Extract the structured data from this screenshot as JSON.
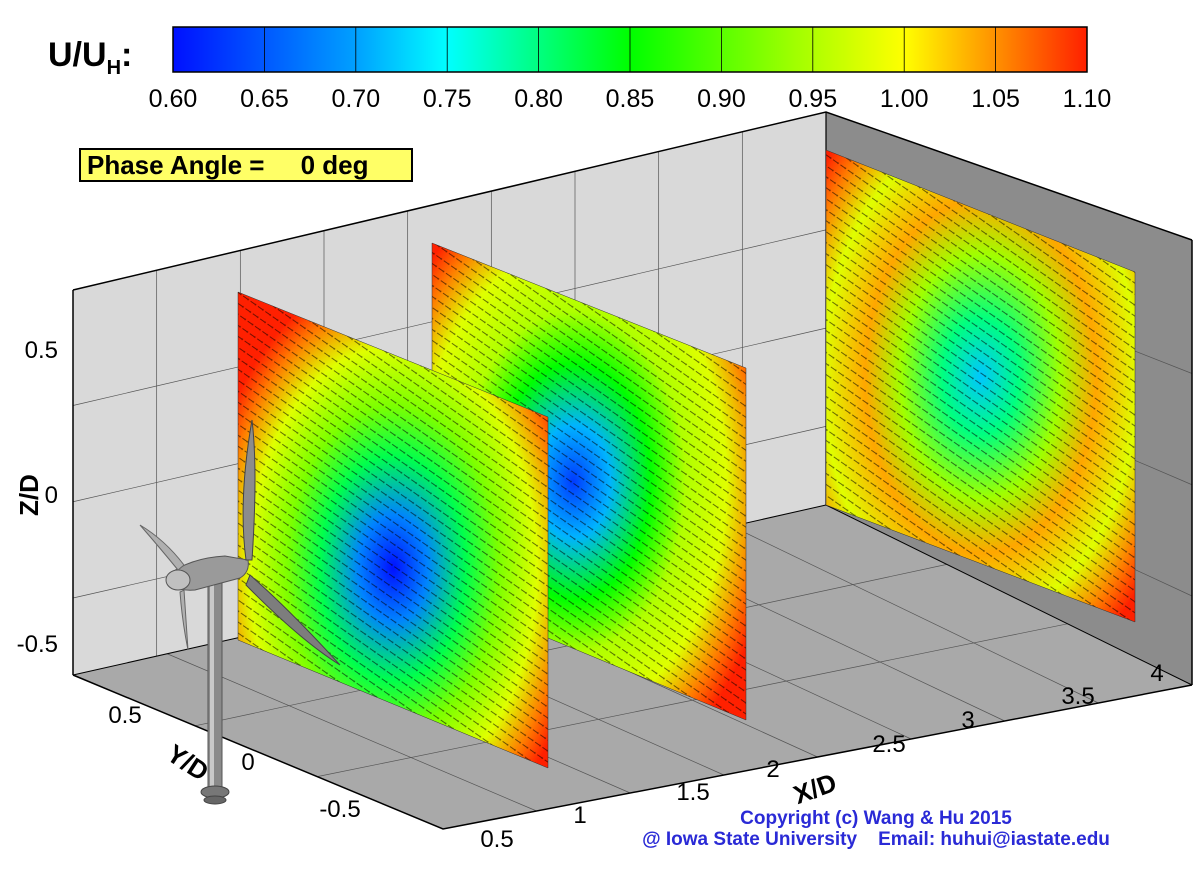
{
  "chart_data": {
    "type": "heatmap",
    "colorbar": {
      "label": "U/U",
      "label_sub": "H",
      "label_suffix": ":",
      "ticks": [
        "0.60",
        "0.65",
        "0.70",
        "0.75",
        "0.80",
        "0.85",
        "0.90",
        "0.95",
        "1.00",
        "1.05",
        "1.10"
      ],
      "range": [
        0.6,
        1.1
      ]
    },
    "phase_label": "Phase Angle =     0 deg",
    "axes": {
      "z": {
        "label": "Z/D",
        "ticks": [
          "0.5",
          "0",
          "-0.5"
        ]
      },
      "y": {
        "label": "Y/D",
        "ticks": [
          "0.5",
          "0",
          "-0.5"
        ]
      },
      "x": {
        "label": "X/D",
        "ticks": [
          "0.5",
          "1",
          "1.5",
          "2",
          "2.5",
          "3",
          "3.5",
          "4"
        ]
      }
    },
    "planes": [
      {
        "x_over_D": 1.0,
        "min_velocity": 0.6
      },
      {
        "x_over_D": 2.0,
        "min_velocity": 0.63
      },
      {
        "x_over_D": 4.0,
        "min_velocity": 0.72
      }
    ],
    "colors": {
      "low": "#0010ff",
      "mid": "#00ff00",
      "high": "#ff2000",
      "floor": "#a9a9a9",
      "wall": "#d8d8d8",
      "wall_dark": "#8c8c8c",
      "phase_box": "#ffff66"
    }
  },
  "copyright": {
    "line1": "Copyright (c) Wang & Hu 2015",
    "line2": "@ Iowa State University    Email: huhui@iastate.edu"
  }
}
